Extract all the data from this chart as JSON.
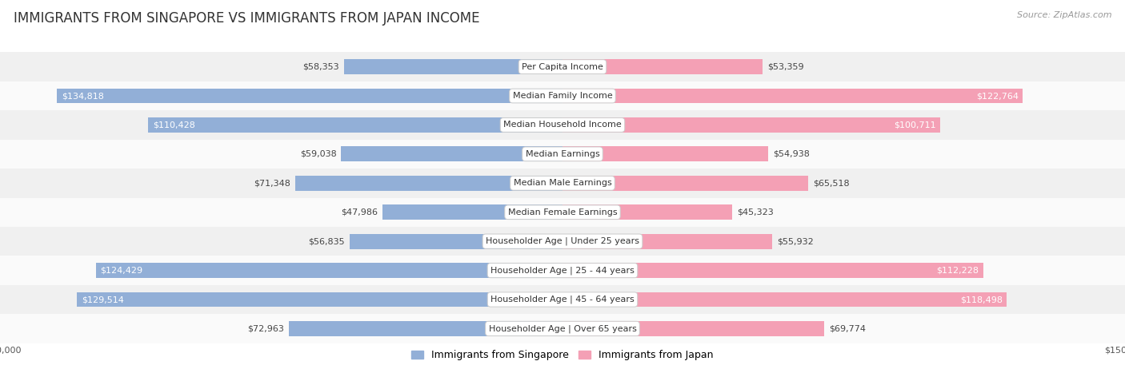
{
  "title": "IMMIGRANTS FROM SINGAPORE VS IMMIGRANTS FROM JAPAN INCOME",
  "source": "Source: ZipAtlas.com",
  "categories": [
    "Per Capita Income",
    "Median Family Income",
    "Median Household Income",
    "Median Earnings",
    "Median Male Earnings",
    "Median Female Earnings",
    "Householder Age | Under 25 years",
    "Householder Age | 25 - 44 years",
    "Householder Age | 45 - 64 years",
    "Householder Age | Over 65 years"
  ],
  "singapore_values": [
    58353,
    134818,
    110428,
    59038,
    71348,
    47986,
    56835,
    124429,
    129514,
    72963
  ],
  "japan_values": [
    53359,
    122764,
    100711,
    54938,
    65518,
    45323,
    55932,
    112228,
    118498,
    69774
  ],
  "singapore_color": "#92afd7",
  "japan_color": "#f4a0b5",
  "max_value": 150000,
  "row_colors": [
    "#f0f0f0",
    "#fafafa"
  ],
  "legend_singapore": "Immigrants from Singapore",
  "legend_japan": "Immigrants from Japan",
  "bar_height": 0.52,
  "title_fontsize": 12,
  "source_fontsize": 8,
  "value_fontsize": 8,
  "category_fontsize": 8,
  "legend_fontsize": 9
}
